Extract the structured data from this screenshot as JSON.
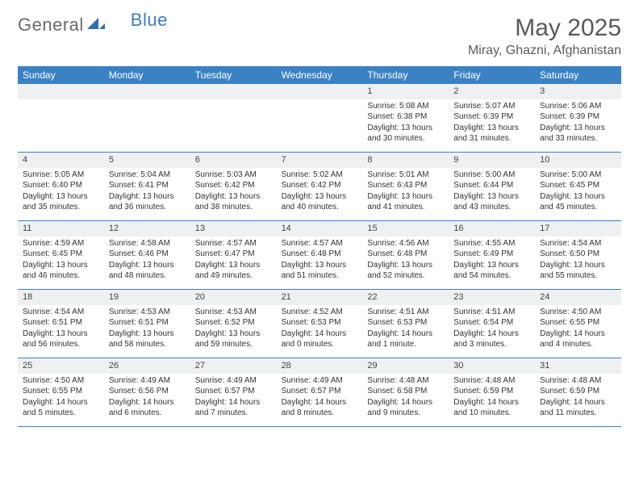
{
  "logo": {
    "part1": "General",
    "part2": "Blue"
  },
  "title": "May 2025",
  "location": "Miray, Ghazni, Afghanistan",
  "colors": {
    "header_bg": "#3b82c4",
    "header_text": "#ffffff",
    "daynum_bg": "#eef0f2",
    "row_border": "#3b82c4",
    "logo_gray": "#6b6b6b",
    "logo_blue": "#3b7bbf",
    "title_color": "#5a5a5a"
  },
  "weekdays": [
    "Sunday",
    "Monday",
    "Tuesday",
    "Wednesday",
    "Thursday",
    "Friday",
    "Saturday"
  ],
  "weeks": [
    [
      null,
      null,
      null,
      null,
      {
        "n": "1",
        "sr": "5:08 AM",
        "ss": "6:38 PM",
        "dl": "13 hours and 30 minutes."
      },
      {
        "n": "2",
        "sr": "5:07 AM",
        "ss": "6:39 PM",
        "dl": "13 hours and 31 minutes."
      },
      {
        "n": "3",
        "sr": "5:06 AM",
        "ss": "6:39 PM",
        "dl": "13 hours and 33 minutes."
      }
    ],
    [
      {
        "n": "4",
        "sr": "5:05 AM",
        "ss": "6:40 PM",
        "dl": "13 hours and 35 minutes."
      },
      {
        "n": "5",
        "sr": "5:04 AM",
        "ss": "6:41 PM",
        "dl": "13 hours and 36 minutes."
      },
      {
        "n": "6",
        "sr": "5:03 AM",
        "ss": "6:42 PM",
        "dl": "13 hours and 38 minutes."
      },
      {
        "n": "7",
        "sr": "5:02 AM",
        "ss": "6:42 PM",
        "dl": "13 hours and 40 minutes."
      },
      {
        "n": "8",
        "sr": "5:01 AM",
        "ss": "6:43 PM",
        "dl": "13 hours and 41 minutes."
      },
      {
        "n": "9",
        "sr": "5:00 AM",
        "ss": "6:44 PM",
        "dl": "13 hours and 43 minutes."
      },
      {
        "n": "10",
        "sr": "5:00 AM",
        "ss": "6:45 PM",
        "dl": "13 hours and 45 minutes."
      }
    ],
    [
      {
        "n": "11",
        "sr": "4:59 AM",
        "ss": "6:45 PM",
        "dl": "13 hours and 46 minutes."
      },
      {
        "n": "12",
        "sr": "4:58 AM",
        "ss": "6:46 PM",
        "dl": "13 hours and 48 minutes."
      },
      {
        "n": "13",
        "sr": "4:57 AM",
        "ss": "6:47 PM",
        "dl": "13 hours and 49 minutes."
      },
      {
        "n": "14",
        "sr": "4:57 AM",
        "ss": "6:48 PM",
        "dl": "13 hours and 51 minutes."
      },
      {
        "n": "15",
        "sr": "4:56 AM",
        "ss": "6:48 PM",
        "dl": "13 hours and 52 minutes."
      },
      {
        "n": "16",
        "sr": "4:55 AM",
        "ss": "6:49 PM",
        "dl": "13 hours and 54 minutes."
      },
      {
        "n": "17",
        "sr": "4:54 AM",
        "ss": "6:50 PM",
        "dl": "13 hours and 55 minutes."
      }
    ],
    [
      {
        "n": "18",
        "sr": "4:54 AM",
        "ss": "6:51 PM",
        "dl": "13 hours and 56 minutes."
      },
      {
        "n": "19",
        "sr": "4:53 AM",
        "ss": "6:51 PM",
        "dl": "13 hours and 58 minutes."
      },
      {
        "n": "20",
        "sr": "4:53 AM",
        "ss": "6:52 PM",
        "dl": "13 hours and 59 minutes."
      },
      {
        "n": "21",
        "sr": "4:52 AM",
        "ss": "6:53 PM",
        "dl": "14 hours and 0 minutes."
      },
      {
        "n": "22",
        "sr": "4:51 AM",
        "ss": "6:53 PM",
        "dl": "14 hours and 1 minute."
      },
      {
        "n": "23",
        "sr": "4:51 AM",
        "ss": "6:54 PM",
        "dl": "14 hours and 3 minutes."
      },
      {
        "n": "24",
        "sr": "4:50 AM",
        "ss": "6:55 PM",
        "dl": "14 hours and 4 minutes."
      }
    ],
    [
      {
        "n": "25",
        "sr": "4:50 AM",
        "ss": "6:55 PM",
        "dl": "14 hours and 5 minutes."
      },
      {
        "n": "26",
        "sr": "4:49 AM",
        "ss": "6:56 PM",
        "dl": "14 hours and 6 minutes."
      },
      {
        "n": "27",
        "sr": "4:49 AM",
        "ss": "6:57 PM",
        "dl": "14 hours and 7 minutes."
      },
      {
        "n": "28",
        "sr": "4:49 AM",
        "ss": "6:57 PM",
        "dl": "14 hours and 8 minutes."
      },
      {
        "n": "29",
        "sr": "4:48 AM",
        "ss": "6:58 PM",
        "dl": "14 hours and 9 minutes."
      },
      {
        "n": "30",
        "sr": "4:48 AM",
        "ss": "6:59 PM",
        "dl": "14 hours and 10 minutes."
      },
      {
        "n": "31",
        "sr": "4:48 AM",
        "ss": "6:59 PM",
        "dl": "14 hours and 11 minutes."
      }
    ]
  ],
  "labels": {
    "sunrise": "Sunrise:",
    "sunset": "Sunset:",
    "daylight": "Daylight:"
  }
}
